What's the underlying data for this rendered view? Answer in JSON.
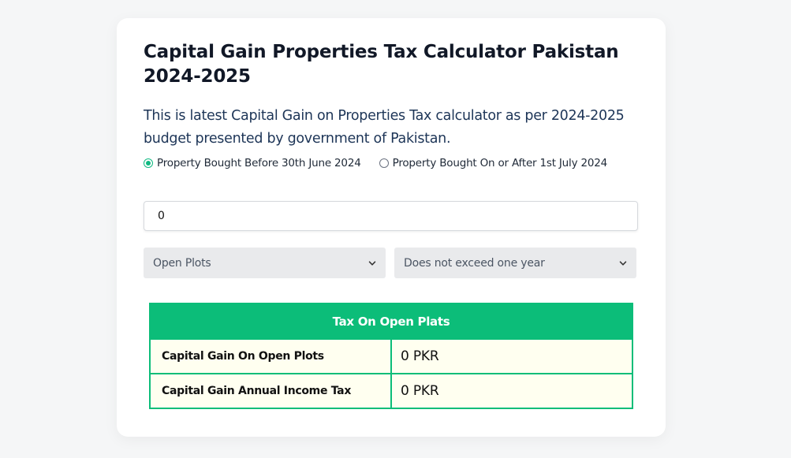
{
  "title": "Capital Gain Properties Tax Calculator Pakistan 2024-2025",
  "description": "This is latest Capital Gain on Properties Tax calculator as per 2024-2025 budget presented by government of Pakistan.",
  "radio_options": [
    {
      "label": "Property Bought Before 30th June 2024",
      "checked": true
    },
    {
      "label": "Property Bought On or After 1st July 2024",
      "checked": false
    }
  ],
  "amount_input": {
    "value": "0"
  },
  "property_type_select": {
    "selected": "Open Plots"
  },
  "holding_period_select": {
    "selected": "Does not exceed one year"
  },
  "result_table": {
    "header": "Tax On Open Plats",
    "rows": [
      {
        "label": "Capital Gain On Open Plots",
        "value": "0 PKR"
      },
      {
        "label": "Capital Gain Annual Income Tax",
        "value": "0 PKR"
      }
    ]
  },
  "colors": {
    "accent": "#0cbd79",
    "table_cell_bg": "#fffff0",
    "select_bg": "#e9eaec"
  }
}
